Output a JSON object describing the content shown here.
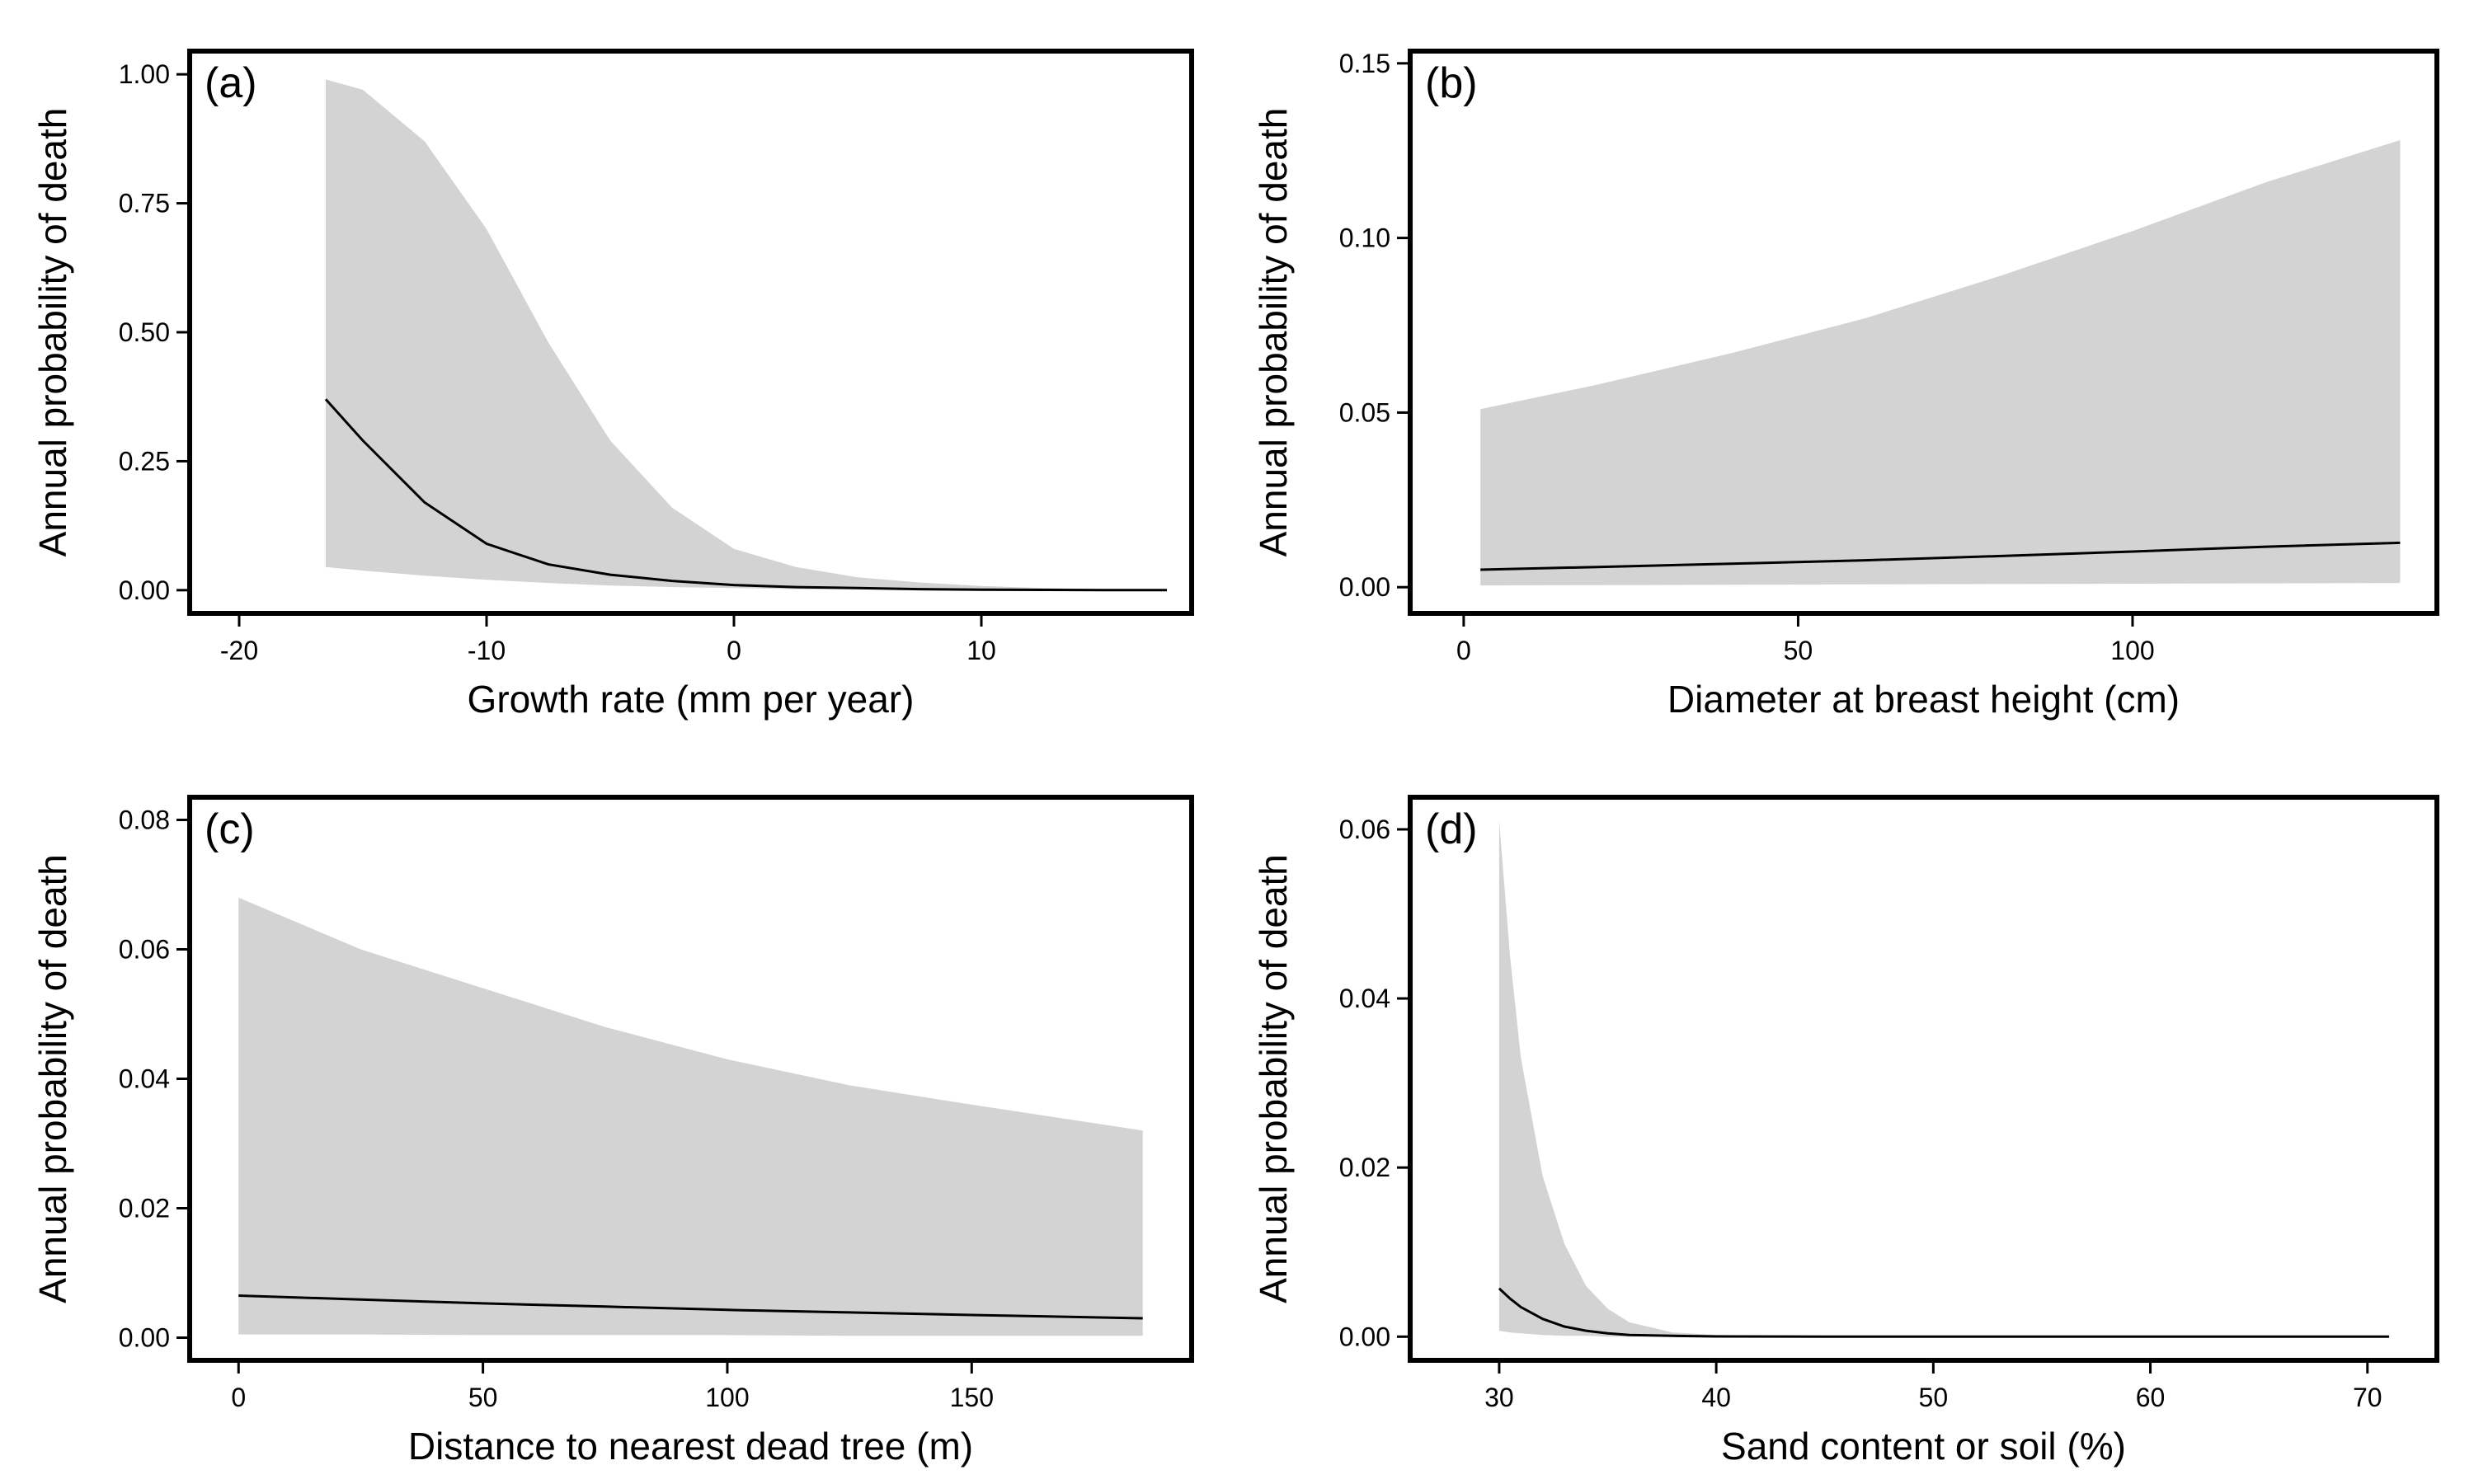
{
  "chart_data": [
    {
      "panel": "(a)",
      "type": "line",
      "xlabel": "Growth rate (mm per year)",
      "ylabel": "Annual probability of death",
      "xlim": [
        -22,
        18.5
      ],
      "ylim": [
        -0.045,
        1.045
      ],
      "xticks": [
        -20,
        -10,
        0,
        10
      ],
      "xtick_labels": [
        "-20",
        "-10",
        "0",
        "10"
      ],
      "yticks": [
        0,
        0.25,
        0.5,
        0.75,
        1.0
      ],
      "ytick_labels": [
        "0.00",
        "0.25",
        "0.50",
        "0.75",
        "1.00"
      ],
      "x": [
        -16.5,
        -15,
        -12.5,
        -10,
        -7.5,
        -5,
        -2.5,
        0,
        2.5,
        5,
        7.5,
        10,
        12.5,
        15,
        17.5
      ],
      "fit": [
        0.37,
        0.29,
        0.17,
        0.09,
        0.05,
        0.03,
        0.018,
        0.01,
        0.006,
        0.004,
        0.002,
        0.001,
        0.0005,
        0.0003,
        0.0002
      ],
      "lower": [
        0.045,
        0.038,
        0.028,
        0.02,
        0.014,
        0.009,
        0.006,
        0.004,
        0.002,
        0.0015,
        0.001,
        0.0005,
        0.0002,
        0.0001,
        0.0001
      ],
      "upper": [
        0.99,
        0.97,
        0.87,
        0.7,
        0.48,
        0.29,
        0.16,
        0.08,
        0.045,
        0.025,
        0.015,
        0.008,
        0.004,
        0.002,
        0.001
      ],
      "grid": false,
      "line_color": "#000000",
      "band_color": "#d3d3d3"
    },
    {
      "panel": "(b)",
      "type": "line",
      "xlabel": "Diameter at breast height (cm)",
      "ylabel": "Annual probability of death",
      "xlim": [
        -8,
        145.5
      ],
      "ylim": [
        -0.0075,
        0.1535
      ],
      "xticks": [
        0,
        50,
        100
      ],
      "xtick_labels": [
        "0",
        "50",
        "100"
      ],
      "yticks": [
        0,
        0.05,
        0.1,
        0.15
      ],
      "ytick_labels": [
        "0.00",
        "0.05",
        "0.10",
        "0.15"
      ],
      "x": [
        2.5,
        20,
        40,
        60,
        80,
        100,
        120,
        140
      ],
      "fit": [
        0.005,
        0.0058,
        0.0067,
        0.0077,
        0.0089,
        0.0102,
        0.0116,
        0.0127
      ],
      "lower": [
        0.0005,
        0.0006,
        0.0007,
        0.0008,
        0.0009,
        0.001,
        0.0011,
        0.0012
      ],
      "upper": [
        0.051,
        0.058,
        0.067,
        0.077,
        0.089,
        0.102,
        0.116,
        0.128
      ],
      "grid": false,
      "line_color": "#000000",
      "band_color": "#d3d3d3"
    },
    {
      "panel": "(c)",
      "type": "line",
      "xlabel": "Distance to nearest dead tree (m)",
      "ylabel": "Annual probability of death",
      "xlim": [
        -10,
        195
      ],
      "ylim": [
        -0.0035,
        0.0835
      ],
      "xticks": [
        0,
        50,
        100,
        150
      ],
      "xtick_labels": [
        "0",
        "50",
        "100",
        "150"
      ],
      "yticks": [
        0,
        0.02,
        0.04,
        0.06,
        0.08
      ],
      "ytick_labels": [
        "0.00",
        "0.02",
        "0.04",
        "0.06",
        "0.08"
      ],
      "x": [
        0,
        25,
        50,
        75,
        100,
        125,
        150,
        185
      ],
      "fit": [
        0.0065,
        0.0059,
        0.0053,
        0.0048,
        0.0043,
        0.0039,
        0.0035,
        0.003
      ],
      "lower": [
        0.0005,
        0.0005,
        0.0004,
        0.0004,
        0.0004,
        0.0003,
        0.0003,
        0.0003
      ],
      "upper": [
        0.068,
        0.06,
        0.054,
        0.048,
        0.043,
        0.039,
        0.036,
        0.032
      ],
      "grid": false,
      "line_color": "#000000",
      "band_color": "#d3d3d3"
    },
    {
      "panel": "(d)",
      "type": "line",
      "xlabel": "Sand content or soil (%)",
      "ylabel": "Annual probability of death",
      "xlim": [
        25.9,
        73.2
      ],
      "ylim": [
        -0.0028,
        0.0638
      ],
      "xticks": [
        30,
        40,
        50,
        60,
        70
      ],
      "xtick_labels": [
        "30",
        "40",
        "50",
        "60",
        "70"
      ],
      "yticks": [
        0,
        0.02,
        0.04,
        0.06
      ],
      "ytick_labels": [
        "0.00",
        "0.02",
        "0.04",
        "0.06"
      ],
      "x": [
        30,
        30.5,
        31,
        32,
        33,
        34,
        35,
        36,
        38,
        40,
        45,
        50,
        60,
        71
      ],
      "fit": [
        0.0057,
        0.0045,
        0.0035,
        0.0021,
        0.0012,
        0.0007,
        0.0004,
        0.0002,
        0.0001,
        3e-05,
        1e-05,
        0,
        0,
        0
      ],
      "lower": [
        0.0007,
        0.0005,
        0.0004,
        0.0002,
        0.0001,
        0.0001,
        0,
        0,
        0,
        0,
        0,
        0,
        0,
        0
      ],
      "upper": [
        0.061,
        0.045,
        0.033,
        0.019,
        0.011,
        0.006,
        0.0033,
        0.0017,
        0.0005,
        0.0002,
        3e-05,
        0,
        0,
        0
      ],
      "grid": false,
      "line_color": "#000000",
      "band_color": "#d3d3d3"
    }
  ]
}
